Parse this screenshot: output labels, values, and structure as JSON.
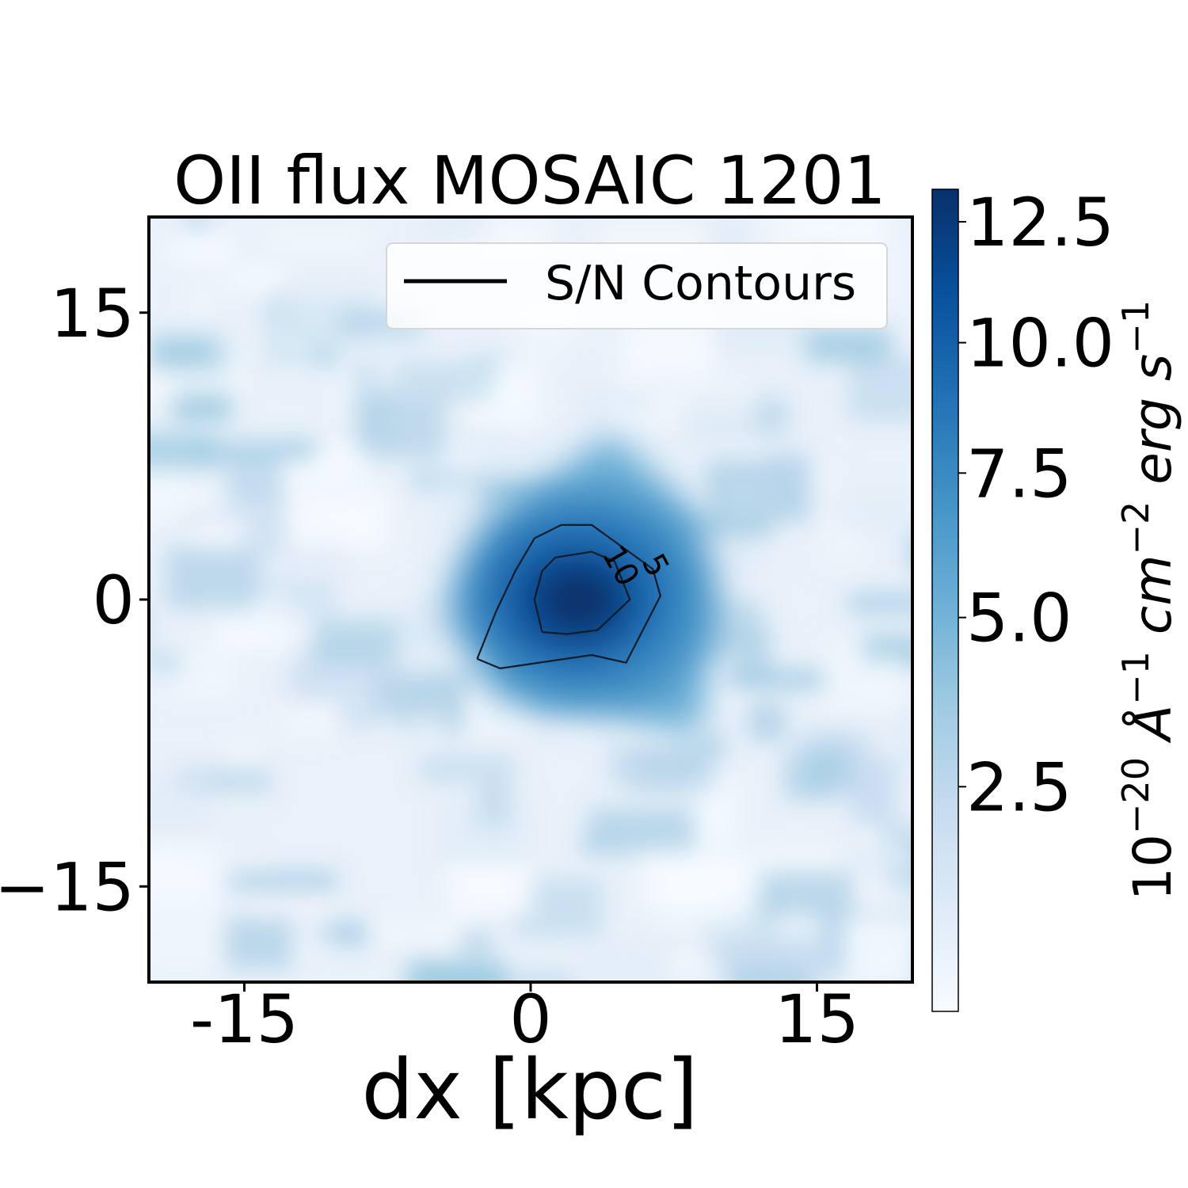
{
  "chart_data": {
    "type": "heatmap",
    "title": "OII flux MOSAIC 1201",
    "xlabel": "dx [kpc]",
    "ylabel": "",
    "xlim": [
      -20,
      20
    ],
    "ylim": [
      -20,
      20
    ],
    "x_ticks": [
      {
        "value": -15,
        "label": "-15"
      },
      {
        "value": 0,
        "label": "0"
      },
      {
        "value": 15,
        "label": "15"
      }
    ],
    "y_ticks": [
      {
        "value": 15,
        "label": "15"
      },
      {
        "value": 0,
        "label": "0"
      },
      {
        "value": -15,
        "label": "−15"
      }
    ],
    "colormap": "Blues",
    "color_low": "#f7fbff",
    "color_high": "#08306b",
    "colorbar": {
      "label_base": "10",
      "label_exp": "−20",
      "label_unit1": "Å",
      "label_unit1_exp": "−1",
      "label_unit2": "cm",
      "label_unit2_exp": "−2",
      "label_unit3": "erg s",
      "label_unit3_exp": "−1",
      "range": [
        0.2,
        13.2
      ],
      "ticks": [
        {
          "value": 2.5,
          "label": "2.5"
        },
        {
          "value": 5.0,
          "label": "5.0"
        },
        {
          "value": 7.5,
          "label": "7.5"
        },
        {
          "value": 10.0,
          "label": "10.0"
        },
        {
          "value": 12.5,
          "label": "12.5"
        }
      ]
    },
    "peak": {
      "x": 2.5,
      "y": 0,
      "value": 13
    },
    "contours": [
      {
        "level": 5,
        "label": "5",
        "points": [
          [
            -2.8,
            -3.1
          ],
          [
            -1.6,
            -3.6
          ],
          [
            3.2,
            -2.9
          ],
          [
            5,
            -3.3
          ],
          [
            6.8,
            0.2
          ],
          [
            6.4,
            1.6
          ],
          [
            3.2,
            3.9
          ],
          [
            1.6,
            3.9
          ],
          [
            0.2,
            3.2
          ],
          [
            -0.8,
            1.5
          ],
          [
            -1.8,
            -0.6
          ],
          [
            -2.8,
            -3.1
          ]
        ]
      },
      {
        "level": 10,
        "label": "10",
        "points": [
          [
            0.6,
            -1.7
          ],
          [
            1.9,
            -1.8
          ],
          [
            3.5,
            -1.6
          ],
          [
            5.2,
            0
          ],
          [
            4.4,
            2
          ],
          [
            3.2,
            2.5
          ],
          [
            1.3,
            2.2
          ],
          [
            0.6,
            1.5
          ],
          [
            0.2,
            0
          ],
          [
            0.6,
            -1.7
          ]
        ]
      }
    ],
    "legend": {
      "entries": [
        "S/N Contours"
      ],
      "placement": "upper right"
    }
  }
}
